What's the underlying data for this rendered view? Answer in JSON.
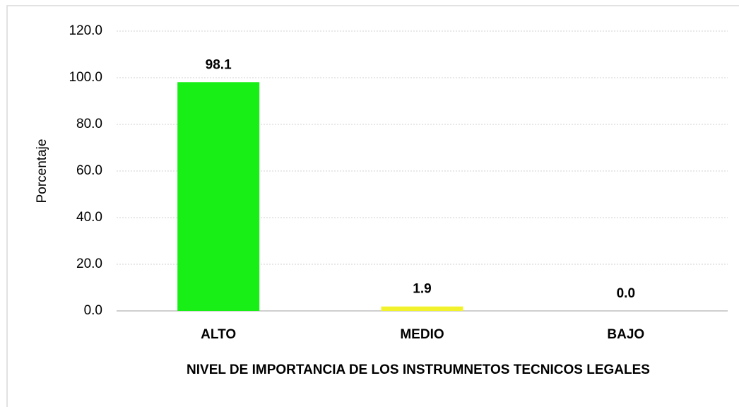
{
  "chart_data": {
    "type": "bar",
    "categories": [
      "ALTO",
      "MEDIO",
      "BAJO"
    ],
    "values": [
      98.1,
      1.9,
      0.0
    ],
    "value_labels": [
      "98.1",
      "1.9",
      "0.0"
    ],
    "colors": [
      "#17ef17",
      "#f2f22c",
      "#f2f22c"
    ],
    "y_label": "Porcentaje",
    "x_label": "NIVEL DE IMPORTANCIA DE LOS INSTRUMNETOS TECNICOS LEGALES",
    "ylim": [
      0,
      120
    ],
    "yticks": [
      {
        "value": 0,
        "label": "0.0"
      },
      {
        "value": 20,
        "label": "20.0"
      },
      {
        "value": 40,
        "label": "40.0"
      },
      {
        "value": 60,
        "label": "60.0"
      },
      {
        "value": 80,
        "label": "80.0"
      },
      {
        "value": 100,
        "label": "100.0"
      },
      {
        "value": 120,
        "label": "120.0"
      }
    ],
    "grid": true
  }
}
